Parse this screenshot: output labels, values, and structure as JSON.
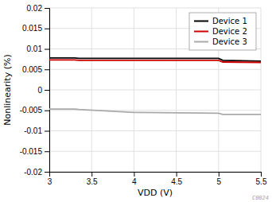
{
  "chart_data": {
    "type": "line",
    "title": "",
    "xlabel": "VDD (V)",
    "ylabel": "Nonlinearity (%)",
    "xlim": [
      3,
      5.5
    ],
    "ylim": [
      -0.02,
      0.02
    ],
    "xticks": [
      3,
      3.5,
      4,
      4.5,
      5,
      5.5
    ],
    "yticks": [
      -0.02,
      -0.015,
      -0.01,
      -0.005,
      0,
      0.005,
      0.01,
      0.015,
      0.02
    ],
    "series": [
      {
        "name": "Device 1",
        "color": "#000000",
        "x": [
          3.0,
          3.3,
          3.35,
          5.0,
          5.05,
          5.5
        ],
        "values": [
          0.0078,
          0.0078,
          0.0077,
          0.0077,
          0.0072,
          0.007
        ]
      },
      {
        "name": "Device 2",
        "color": "#cc0000",
        "x": [
          3.0,
          3.3,
          3.35,
          5.0,
          5.05,
          5.5
        ],
        "values": [
          0.0073,
          0.0073,
          0.0072,
          0.0072,
          0.0068,
          0.0067
        ]
      },
      {
        "name": "Device 3",
        "color": "#aaaaaa",
        "x": [
          3.0,
          3.3,
          3.35,
          4.0,
          4.05,
          5.0,
          5.05,
          5.5
        ],
        "values": [
          -0.0047,
          -0.0047,
          -0.0048,
          -0.0055,
          -0.0055,
          -0.0057,
          -0.006,
          -0.006
        ]
      }
    ],
    "annotations": [
      "C0024"
    ],
    "legend": "upper right",
    "grid": true
  }
}
